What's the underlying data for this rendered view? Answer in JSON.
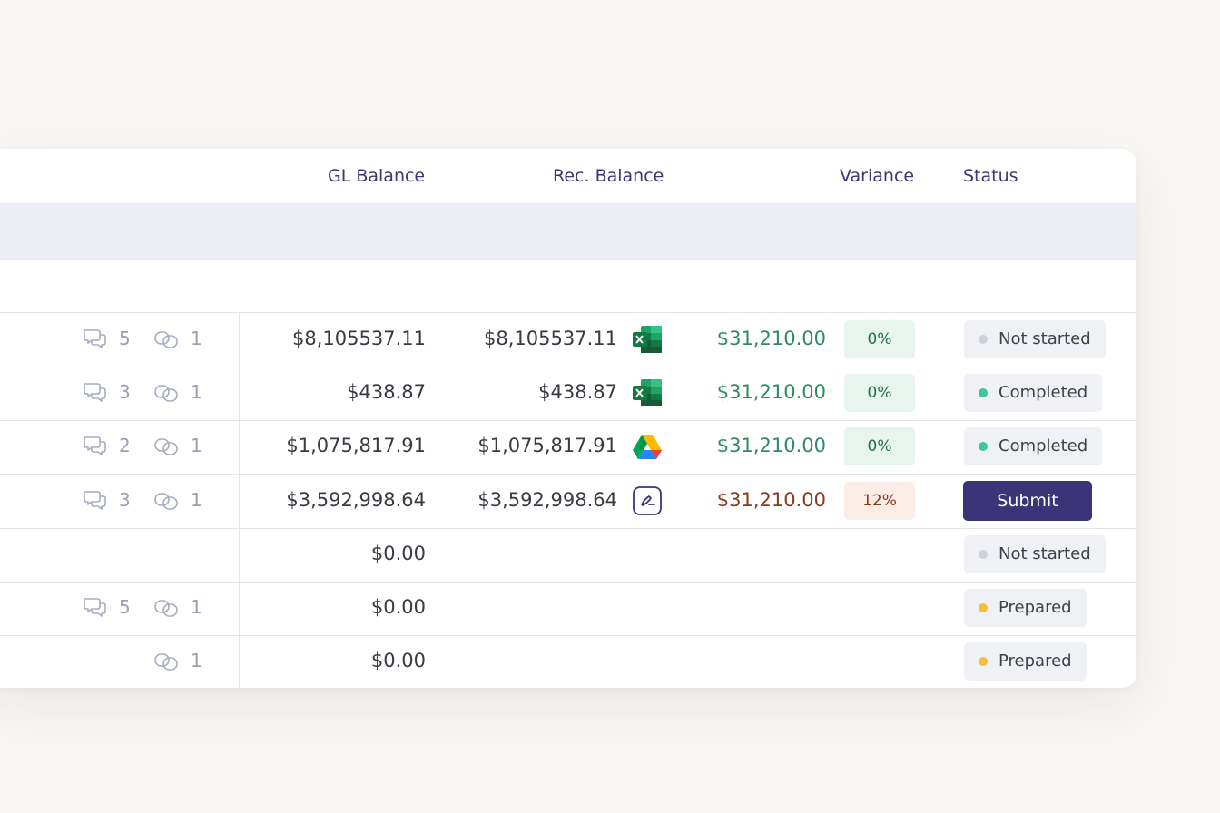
{
  "table": {
    "columns": {
      "gl_balance": "GL Balance",
      "rec_balance": "Rec. Balance",
      "variance": "Variance",
      "status": "Status"
    },
    "rows": [
      {
        "comments": "5",
        "links": "1",
        "gl": "$8,105537.11",
        "rec": "$8,105537.11",
        "file": "excel-icon",
        "variance": "$31,210.00",
        "variance_pct": "0%",
        "variance_state": "ok",
        "status": "Not started",
        "status_color": "#cfd1d8"
      },
      {
        "comments": "3",
        "links": "1",
        "gl": "$438.87",
        "rec": "$438.87",
        "file": "excel-icon",
        "variance": "$31,210.00",
        "variance_pct": "0%",
        "variance_state": "ok",
        "status": "Completed",
        "status_color": "#3ec79a"
      },
      {
        "comments": "2",
        "links": "1",
        "gl": "$1,075,817.91",
        "rec": "$1,075,817.91",
        "file": "google-drive-icon",
        "variance": "$31,210.00",
        "variance_pct": "0%",
        "variance_state": "ok",
        "status": "Completed",
        "status_color": "#3ec79a"
      },
      {
        "comments": "3",
        "links": "1",
        "gl": "$3,592,998.64",
        "rec": "$3,592,998.64",
        "file": "signature-icon",
        "variance": "$31,210.00",
        "variance_pct": "12%",
        "variance_state": "bad",
        "status": "Submit",
        "status_color": "#3b3478"
      },
      {
        "comments": "",
        "links": "",
        "gl": "$0.00",
        "rec": "",
        "file": "",
        "variance": "",
        "variance_pct": "",
        "variance_state": "",
        "status": "Not started",
        "status_color": "#cfd1d8"
      },
      {
        "comments": "5",
        "links": "1",
        "gl": "$0.00",
        "rec": "",
        "file": "",
        "variance": "",
        "variance_pct": "",
        "variance_state": "",
        "status": "Prepared",
        "status_color": "#f5c037"
      },
      {
        "comments": "",
        "links": "1",
        "gl": "$0.00",
        "rec": "",
        "file": "",
        "variance": "",
        "variance_pct": "",
        "variance_state": "",
        "status": "Prepared",
        "status_color": "#f5c037"
      }
    ]
  },
  "colors": {
    "accent": "#3b3478",
    "header_text": "#3b3676",
    "variance_ok": "#2f8a63",
    "variance_bad": "#8a3a1c"
  }
}
